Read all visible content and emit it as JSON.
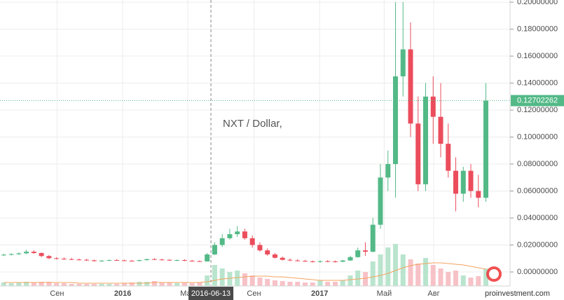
{
  "chart_data": {
    "type": "candlestick",
    "title": "NXT / Dollar,",
    "x": [
      "2015-05-25",
      "2015-06-08",
      "2015-06-22",
      "2015-07-06",
      "2015-07-20",
      "2015-08-03",
      "2015-08-17",
      "2015-08-31",
      "2015-09-14",
      "2015-09-28",
      "2015-10-12",
      "2015-10-26",
      "2015-11-09",
      "2015-11-23",
      "2015-12-07",
      "2015-12-21",
      "2016-01-04",
      "2016-01-18",
      "2016-02-01",
      "2016-02-15",
      "2016-02-29",
      "2016-03-14",
      "2016-03-28",
      "2016-04-11",
      "2016-04-25",
      "2016-05-09",
      "2016-05-23",
      "2016-06-06",
      "2016-06-20",
      "2016-07-04",
      "2016-07-18",
      "2016-08-01",
      "2016-08-15",
      "2016-08-29",
      "2016-09-12",
      "2016-09-26",
      "2016-10-10",
      "2016-10-24",
      "2016-11-07",
      "2016-11-21",
      "2016-12-05",
      "2016-12-19",
      "2017-01-02",
      "2017-01-16",
      "2017-01-30",
      "2017-02-13",
      "2017-02-27",
      "2017-03-13",
      "2017-03-27",
      "2017-04-10",
      "2017-04-24",
      "2017-05-08",
      "2017-05-22",
      "2017-06-05",
      "2017-06-19",
      "2017-07-03",
      "2017-07-17",
      "2017-07-31",
      "2017-08-14",
      "2017-08-28",
      "2017-09-11",
      "2017-09-25",
      "2017-10-09",
      "2017-10-23",
      "2017-11-06"
    ],
    "open": [
      0.0125,
      0.0128,
      0.0132,
      0.0138,
      0.015,
      0.014,
      0.0118,
      0.0102,
      0.0098,
      0.0095,
      0.0092,
      0.009,
      0.0086,
      0.008,
      0.0084,
      0.0088,
      0.0086,
      0.0083,
      0.0082,
      0.0088,
      0.0095,
      0.0092,
      0.009,
      0.0085,
      0.0088,
      0.0083,
      0.008,
      0.0078,
      0.013,
      0.02,
      0.025,
      0.028,
      0.03,
      0.025,
      0.02,
      0.016,
      0.013,
      0.0105,
      0.009,
      0.0085,
      0.0082,
      0.0078,
      0.0075,
      0.008,
      0.0078,
      0.0076,
      0.0085,
      0.011,
      0.016,
      0.015,
      0.035,
      0.07,
      0.08,
      0.145,
      0.165,
      0.11,
      0.065,
      0.13,
      0.115,
      0.095,
      0.075,
      0.058,
      0.075,
      0.06,
      0.055
    ],
    "high": [
      0.0135,
      0.014,
      0.0145,
      0.0165,
      0.016,
      0.0145,
      0.0125,
      0.011,
      0.0108,
      0.0105,
      0.01,
      0.0098,
      0.0092,
      0.0088,
      0.0092,
      0.0095,
      0.0092,
      0.009,
      0.009,
      0.0098,
      0.0102,
      0.0098,
      0.0095,
      0.0092,
      0.0094,
      0.009,
      0.0085,
      0.014,
      0.022,
      0.028,
      0.032,
      0.034,
      0.032,
      0.027,
      0.022,
      0.0175,
      0.014,
      0.0115,
      0.01,
      0.0095,
      0.009,
      0.0085,
      0.0085,
      0.0088,
      0.0085,
      0.009,
      0.012,
      0.018,
      0.022,
      0.04,
      0.08,
      0.09,
      0.2,
      0.2,
      0.185,
      0.13,
      0.14,
      0.145,
      0.14,
      0.11,
      0.085,
      0.078,
      0.08,
      0.072,
      0.14
    ],
    "low": [
      0.0118,
      0.0122,
      0.0125,
      0.0132,
      0.0135,
      0.011,
      0.0095,
      0.0092,
      0.009,
      0.0088,
      0.0085,
      0.0082,
      0.0078,
      0.0075,
      0.008,
      0.0082,
      0.008,
      0.0078,
      0.0078,
      0.0084,
      0.0088,
      0.0086,
      0.0082,
      0.008,
      0.008,
      0.0076,
      0.0074,
      0.0076,
      0.0125,
      0.0185,
      0.024,
      0.026,
      0.024,
      0.018,
      0.015,
      0.012,
      0.01,
      0.0085,
      0.008,
      0.0078,
      0.0075,
      0.007,
      0.0068,
      0.0072,
      0.007,
      0.0072,
      0.0082,
      0.0105,
      0.012,
      0.0145,
      0.032,
      0.06,
      0.055,
      0.13,
      0.1,
      0.06,
      0.06,
      0.095,
      0.085,
      0.07,
      0.045,
      0.052,
      0.055,
      0.048,
      0.052
    ],
    "close": [
      0.0128,
      0.0132,
      0.0138,
      0.015,
      0.014,
      0.0118,
      0.0102,
      0.0098,
      0.0095,
      0.0092,
      0.009,
      0.0086,
      0.008,
      0.0084,
      0.0088,
      0.0086,
      0.0083,
      0.0082,
      0.0088,
      0.0095,
      0.0092,
      0.009,
      0.0085,
      0.0088,
      0.0083,
      0.008,
      0.0078,
      0.013,
      0.02,
      0.025,
      0.028,
      0.03,
      0.025,
      0.02,
      0.016,
      0.013,
      0.0105,
      0.009,
      0.0085,
      0.0082,
      0.0078,
      0.0075,
      0.008,
      0.0078,
      0.0076,
      0.0085,
      0.011,
      0.016,
      0.015,
      0.035,
      0.07,
      0.08,
      0.145,
      0.165,
      0.11,
      0.065,
      0.13,
      0.115,
      0.095,
      0.075,
      0.058,
      0.075,
      0.06,
      0.055,
      0.12702262
    ],
    "volume": [
      5,
      4,
      5,
      6,
      5,
      6,
      6,
      4,
      4,
      3,
      3,
      3,
      3,
      3,
      3,
      3,
      4,
      5,
      6,
      6,
      7,
      5,
      5,
      4,
      5,
      4,
      5,
      15,
      30,
      25,
      20,
      22,
      18,
      15,
      12,
      10,
      8,
      7,
      6,
      6,
      5,
      5,
      8,
      6,
      6,
      8,
      15,
      22,
      20,
      35,
      45,
      55,
      60,
      45,
      38,
      32,
      40,
      30,
      25,
      20,
      22,
      15,
      12,
      14,
      25
    ],
    "volume_ma": [
      5,
      5,
      5,
      5,
      5,
      5,
      5,
      5,
      5,
      5,
      4,
      4,
      4,
      4,
      4,
      4,
      4,
      4,
      4,
      4,
      5,
      5,
      5,
      5,
      5,
      5,
      5,
      6,
      8,
      10,
      11,
      12,
      13,
      14,
      14,
      14,
      13,
      13,
      12,
      11,
      10,
      9,
      8,
      8,
      8,
      8,
      9,
      10,
      11,
      13,
      15,
      18,
      22,
      26,
      29,
      31,
      32,
      33,
      33,
      32,
      31,
      30,
      28,
      26,
      24
    ],
    "volume_lim": [
      0,
      100
    ],
    "up_color": "#53b987",
    "down_color": "#eb4d5c",
    "up_volume_color": "#b9e4cd",
    "down_volume_color": "#f7c2c7",
    "ma_color": "#f4a460",
    "xlim": [
      "2015-05-18",
      "2017-12-17"
    ],
    "xticks": [
      {
        "value": "2015-09-01",
        "label": "Сен"
      },
      {
        "value": "2016-01-01",
        "label": "2016"
      },
      {
        "value": "2016-05-01",
        "label": "Май"
      },
      {
        "value": "2016-09-01",
        "label": "Сен"
      },
      {
        "value": "2017-01-01",
        "label": "2017"
      },
      {
        "value": "2017-05-01",
        "label": "Май"
      },
      {
        "value": "2017-08-01",
        "label": "Авг"
      }
    ],
    "ylim": [
      -0.0104,
      0.2016
    ],
    "yticks": [
      {
        "value": 0,
        "label": "0.00000000"
      },
      {
        "value": 0.02,
        "label": "0.02000000"
      },
      {
        "value": 0.04,
        "label": "0.04000000"
      },
      {
        "value": 0.06,
        "label": "0.06000000"
      },
      {
        "value": 0.08,
        "label": "0.08000000"
      },
      {
        "value": 0.1,
        "label": "0.10000000"
      },
      {
        "value": 0.12,
        "label": "0.12000000"
      },
      {
        "value": 0.14,
        "label": "0.14000000"
      },
      {
        "value": 0.16,
        "label": "0.16000000"
      },
      {
        "value": 0.18,
        "label": "0.18000000"
      },
      {
        "value": 0.2,
        "label": "0.20000000"
      }
    ],
    "grid": true,
    "last_price": {
      "value": 0.12702262,
      "label": "0.12702262"
    },
    "crosshair_x": "2016-06-13",
    "watermark": "proinvestment.com"
  }
}
